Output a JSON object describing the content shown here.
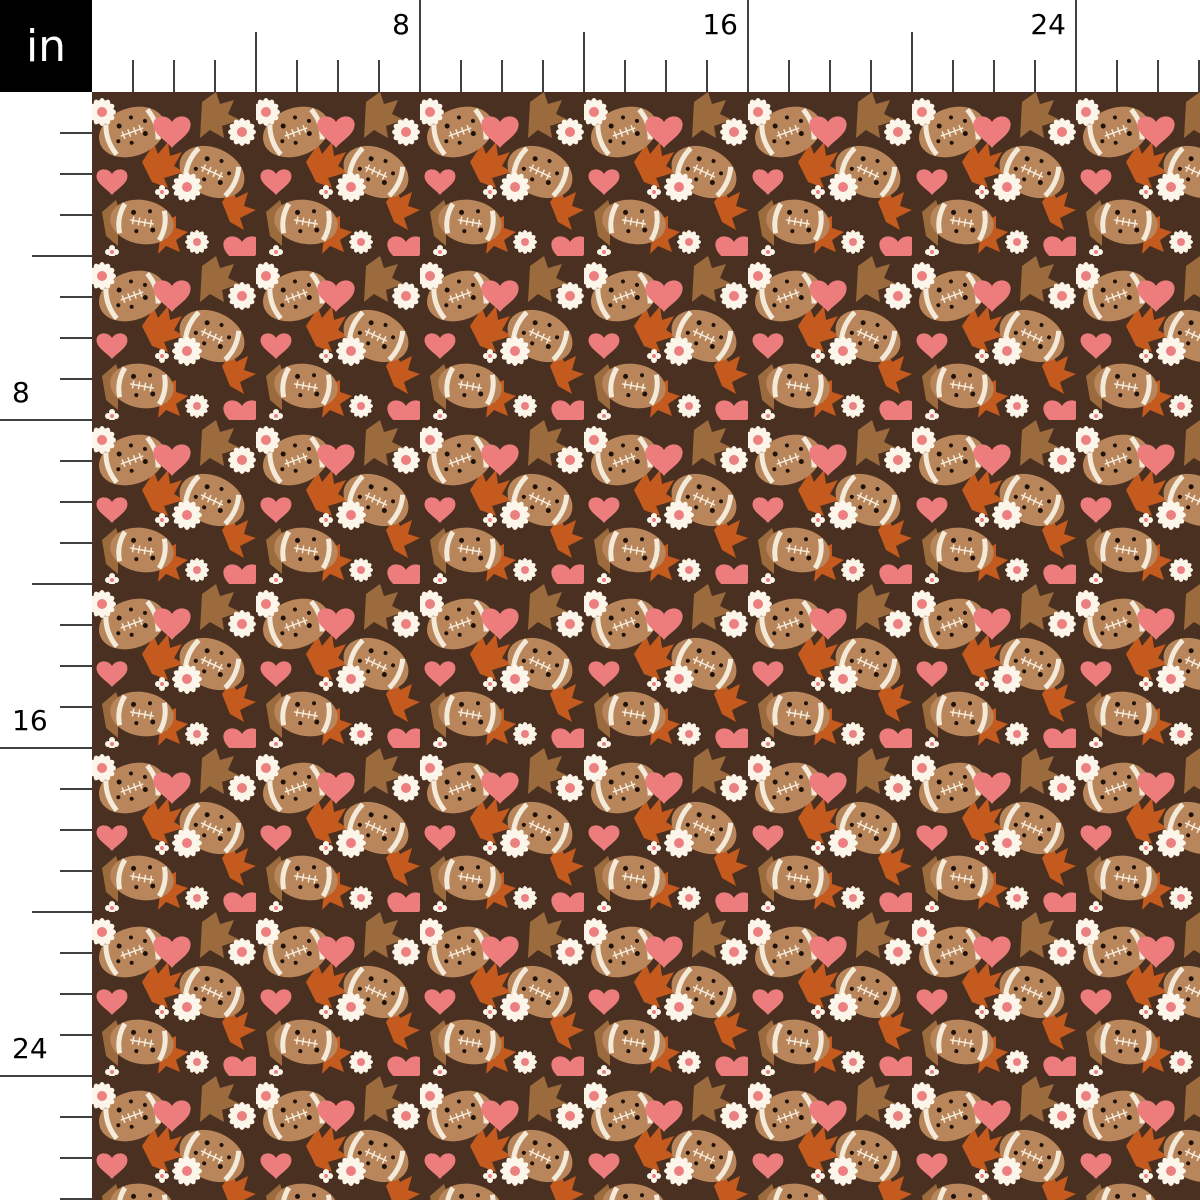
{
  "ruler": {
    "unit": "in",
    "top_labels": [
      "8",
      "16",
      "24"
    ],
    "left_labels": [
      "8",
      "16",
      "24"
    ]
  },
  "pattern": {
    "motifs": [
      "leopard-football",
      "pink-heart",
      "white-daisy",
      "autumn-leaf"
    ],
    "colors": {
      "background": "#4a3020",
      "leopard": "#b9855a",
      "spots": "#1e140c",
      "stripe": "#f3ead9",
      "heart": "#ec7d7c",
      "daisy": "#fbf5ea",
      "daisy_center": "#ec8080",
      "leaf_orange": "#c45a1e",
      "leaf_brown": "#9b6a3d"
    }
  }
}
